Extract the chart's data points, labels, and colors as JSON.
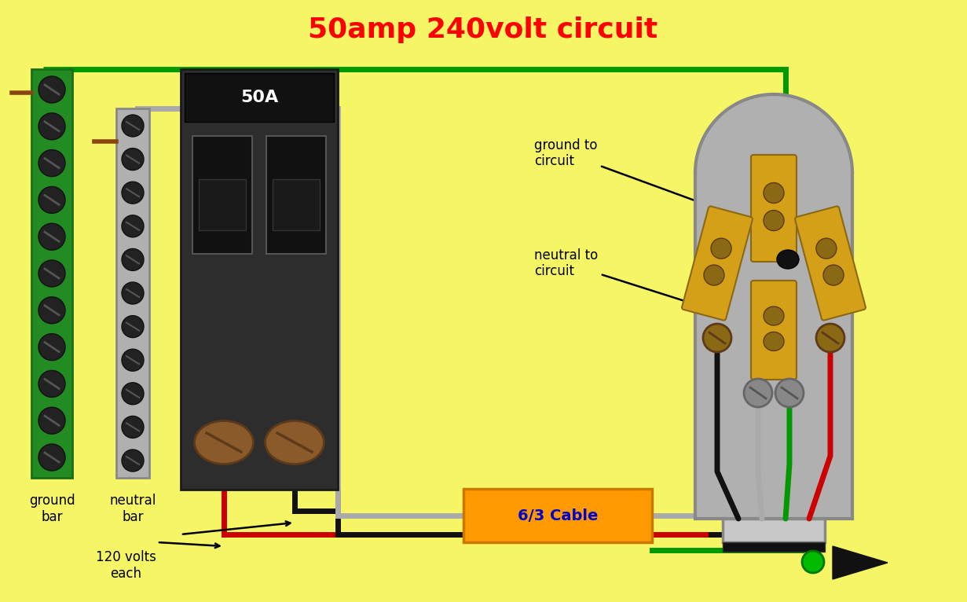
{
  "title": "50amp 240volt circuit",
  "title_color": "#ff0000",
  "title_fontsize": 26,
  "background_color": "#f5f566",
  "fig_width": 12.31,
  "fig_height": 7.66,
  "ground_bar_color": "#228B22",
  "wire_green": "#009900",
  "wire_gray": "#aaaaaa",
  "wire_red": "#cc0000",
  "wire_black": "#111111",
  "cable_color": "#ff9900",
  "cable_label": "6/3 Cable",
  "cable_label_color": "#0000cc",
  "plug_body_color": "#b0b0b0",
  "prong_color": "#d4a017",
  "screw_color": "#8B6914",
  "label_ground_bar": "ground\nbar",
  "label_neutral_bar": "neutral\nbar",
  "label_ground_circuit": "ground to\ncircuit",
  "label_neutral_circuit": "neutral to\ncircuit",
  "label_120v": "120 volts\neach",
  "label_50A": "50A"
}
